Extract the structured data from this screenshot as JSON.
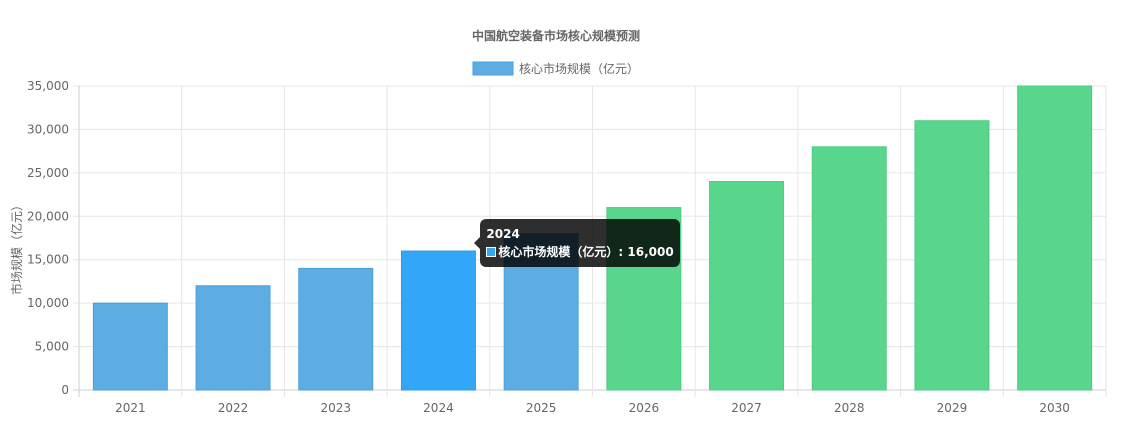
{
  "chart_data": {
    "type": "bar",
    "title": "中国航空装备市场核心规模预测",
    "categories": [
      "2021",
      "2022",
      "2023",
      "2024",
      "2025",
      "2026",
      "2027",
      "2028",
      "2029",
      "2030"
    ],
    "series": [
      {
        "name": "核心市场规模（亿元）",
        "values": [
          10000,
          12000,
          14000,
          16000,
          18000,
          21000,
          24000,
          28000,
          31000,
          35000
        ]
      }
    ],
    "bar_colors": [
      "#5DADE2",
      "#5DADE2",
      "#5DADE2",
      "#33A7F7",
      "#5DADE2",
      "#58D68D",
      "#58D68D",
      "#58D68D",
      "#58D68D",
      "#58D68D"
    ],
    "bar_border_colors": [
      "#4A9FD8",
      "#4A9FD8",
      "#4A9FD8",
      "#2E9BE8",
      "#4A9FD8",
      "#4FC97F",
      "#4FC97F",
      "#4FC97F",
      "#4FC97F",
      "#4FC97F"
    ],
    "xlabel": "",
    "ylabel": "市场规模（亿元）",
    "ylim": [
      0,
      35000
    ],
    "y_ticks": [
      0,
      5000,
      10000,
      15000,
      20000,
      25000,
      30000,
      35000
    ],
    "y_tick_labels": [
      "0",
      "5,000",
      "10,000",
      "15,000",
      "20,000",
      "25,000",
      "30,000",
      "35,000"
    ],
    "grid": true,
    "legend": {
      "position": "top-center",
      "label": "核心市场规模（亿元）",
      "color": "#5DADE2"
    },
    "tooltip": {
      "category_index": 3,
      "title": "2024",
      "label": "核心市场规模（亿元）: 16,000"
    }
  }
}
